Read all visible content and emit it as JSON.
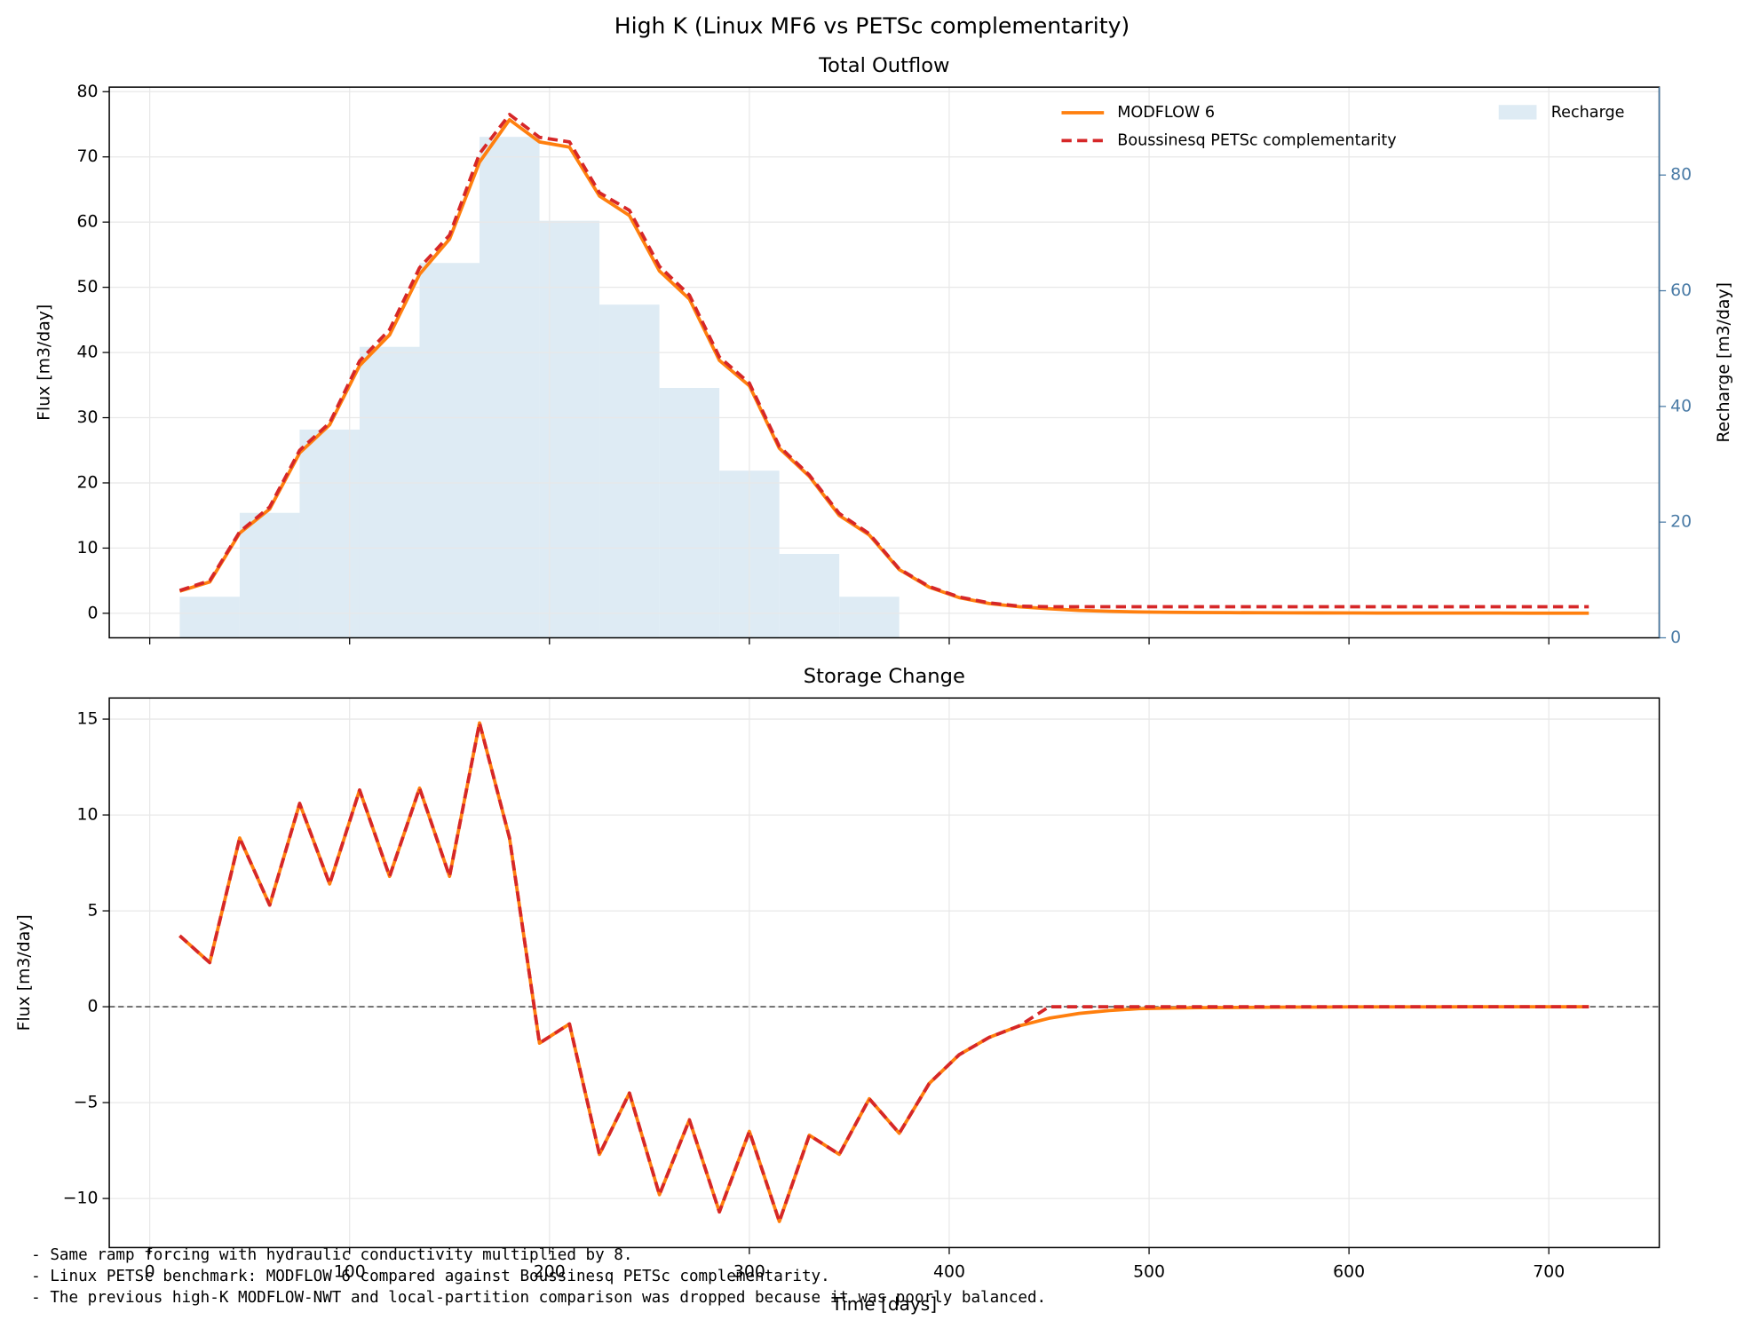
{
  "title": "High K (Linux MF6 vs PETSc complementarity)",
  "notes": [
    "- Same ramp forcing with hydraulic conductivity multiplied by 8.",
    "- Linux PETSc benchmark: MODFLOW 6 compared against Boussinesq PETSc complementarity.",
    "- The previous high-K MODFLOW-NWT and local-partition comparison was dropped because it was poorly balanced."
  ],
  "chart_data": [
    {
      "type": "line",
      "title": "Total Outflow",
      "ylabel": "Flux [m3/day]",
      "y2label": "Recharge [m3/day]",
      "xlim": [
        -20.25,
        755.25
      ],
      "xticks": [
        0,
        100,
        200,
        300,
        400,
        500,
        600,
        700
      ],
      "ylim": [
        -3.76,
        80.7
      ],
      "yticks": [
        0,
        10,
        20,
        30,
        40,
        50,
        60,
        70,
        80
      ],
      "y2lim": [
        0,
        95.2
      ],
      "y2ticks": [
        0,
        20,
        40,
        60,
        80
      ],
      "y2color": "#4a7ba6",
      "grid": true,
      "legend": "upper right",
      "x": [
        15,
        30,
        45,
        60,
        75,
        90,
        105,
        120,
        135,
        150,
        165,
        180,
        195,
        210,
        225,
        240,
        255,
        270,
        285,
        300,
        315,
        330,
        345,
        360,
        375,
        390,
        405,
        420,
        435,
        450,
        465,
        480,
        495,
        510,
        525,
        540,
        555,
        570,
        585,
        600,
        615,
        630,
        645,
        660,
        675,
        690,
        705,
        720
      ],
      "series": [
        {
          "name": "MODFLOW 6",
          "color": "#ff7f0e",
          "dash": false,
          "values": [
            3.4,
            4.8,
            12.3,
            16,
            24.6,
            28.9,
            38,
            42.7,
            52,
            57.4,
            69.2,
            75.7,
            72.3,
            71.5,
            64,
            61,
            52.5,
            48.2,
            38.8,
            34.9,
            25.3,
            21,
            15,
            12,
            6.7,
            4,
            2.4,
            1.5,
            1.0,
            0.7,
            0.45,
            0.3,
            0.2,
            0.15,
            0.12,
            0.1,
            0.08,
            0.07,
            0.06,
            0.05,
            0.04,
            0.04,
            0.03,
            0.03,
            0.03,
            0.02,
            0.02,
            0.02
          ]
        },
        {
          "name": "Boussinesq PETSc complementarity",
          "color": "#d62728",
          "dash": true,
          "values": [
            3.5,
            5,
            12.5,
            16.3,
            25,
            29.2,
            38.7,
            43.5,
            53,
            58,
            70.5,
            76.5,
            73,
            72.3,
            64.5,
            61.8,
            53.2,
            48.8,
            39.3,
            35.3,
            25.6,
            21.2,
            15.3,
            12.2,
            6.8,
            4.1,
            2.5,
            1.6,
            1.1,
            1.0,
            1.0,
            1.0,
            1.0,
            1.0,
            1.0,
            1.0,
            1.0,
            1.0,
            1.0,
            1.0,
            1.0,
            1.0,
            1.0,
            1.0,
            1.0,
            1.0,
            1.0,
            1.0
          ]
        }
      ],
      "bars": {
        "name": "Recharge",
        "color": "#deebf4",
        "axis": "y2",
        "bins": [
          15,
          45,
          75,
          105,
          135,
          165,
          195,
          225,
          255,
          285,
          315,
          345,
          375
        ],
        "values": [
          7.1,
          21.6,
          36,
          50.3,
          64.8,
          86.6,
          72.1,
          57.6,
          43.2,
          28.9,
          14.5,
          7.1
        ]
      }
    },
    {
      "type": "line",
      "title": "Storage Change",
      "ylabel": "Flux [m3/day]",
      "xlabel": "Time [days]",
      "xlim": [
        -20.25,
        755.25
      ],
      "xticks": [
        0,
        100,
        200,
        300,
        400,
        500,
        600,
        700
      ],
      "ylim": [
        -12.56,
        16.1
      ],
      "yticks": [
        {
          "value": -10,
          "label": "−10"
        },
        {
          "value": -5,
          "label": "−5"
        },
        0,
        5,
        10,
        15
      ],
      "grid": true,
      "hline": 0,
      "x": [
        15,
        30,
        45,
        60,
        75,
        90,
        105,
        120,
        135,
        150,
        165,
        180,
        195,
        210,
        225,
        240,
        255,
        270,
        285,
        300,
        315,
        330,
        345,
        360,
        375,
        390,
        405,
        420,
        435,
        450,
        465,
        480,
        495,
        510,
        525,
        540,
        555,
        570,
        585,
        600,
        615,
        630,
        645,
        660,
        675,
        690,
        705,
        720
      ],
      "series": [
        {
          "name": "MODFLOW 6",
          "color": "#ff7f0e",
          "dash": false,
          "values": [
            3.7,
            2.3,
            8.8,
            5.3,
            10.6,
            6.4,
            11.3,
            6.8,
            11.4,
            6.8,
            14.8,
            8.8,
            -1.9,
            -0.9,
            -7.7,
            -4.5,
            -9.8,
            -5.9,
            -10.7,
            -6.5,
            -11.2,
            -6.7,
            -7.7,
            -4.8,
            -6.6,
            -4,
            -2.5,
            -1.6,
            -1.0,
            -0.6,
            -0.35,
            -0.2,
            -0.1,
            -0.07,
            -0.05,
            -0.04,
            -0.03,
            -0.02,
            -0.02,
            -0.01,
            -0.01,
            -0.01,
            -0.01,
            0,
            0,
            0,
            0,
            0
          ]
        },
        {
          "name": "Boussinesq PETSc complementarity",
          "color": "#d62728",
          "dash": true,
          "values": [
            3.7,
            2.3,
            8.8,
            5.3,
            10.6,
            6.4,
            11.3,
            6.8,
            11.4,
            6.8,
            14.8,
            8.8,
            -1.9,
            -0.9,
            -7.7,
            -4.5,
            -9.8,
            -5.9,
            -10.7,
            -6.5,
            -11.2,
            -6.7,
            -7.7,
            -4.8,
            -6.6,
            -4,
            -2.5,
            -1.6,
            -1.0,
            0,
            0,
            0,
            0,
            0,
            0,
            0,
            0,
            0,
            0,
            0,
            0,
            0,
            0,
            0,
            0,
            0,
            0,
            0
          ]
        }
      ]
    }
  ]
}
